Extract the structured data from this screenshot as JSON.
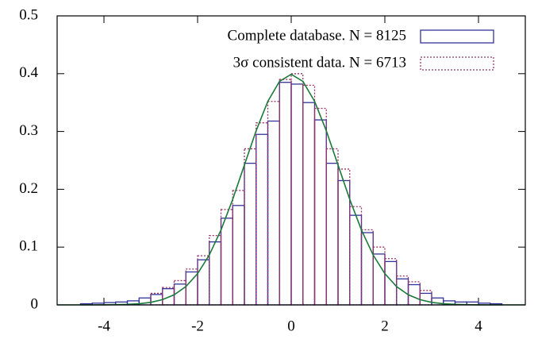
{
  "chart_data": {
    "type": "histogram",
    "bins": [
      -4.5,
      -4.25,
      -4,
      -3.75,
      -3.5,
      -3.25,
      -3,
      -2.75,
      -2.5,
      -2.25,
      -2,
      -1.75,
      -1.5,
      -1.25,
      -1,
      -0.75,
      -0.5,
      -0.25,
      0,
      0.25,
      0.5,
      0.75,
      1,
      1.25,
      1.5,
      1.75,
      2,
      2.25,
      2.5,
      2.75,
      3,
      3.25,
      3.5,
      3.75,
      4,
      4.25,
      4.5
    ],
    "series": [
      {
        "name": "Complete database. N = 8125",
        "color": "#333399",
        "dashed": false,
        "values": [
          0.002,
          0.003,
          0.004,
          0.005,
          0.007,
          0.012,
          0.018,
          0.028,
          0.036,
          0.057,
          0.078,
          0.109,
          0.15,
          0.172,
          0.245,
          0.295,
          0.318,
          0.385,
          0.382,
          0.35,
          0.32,
          0.245,
          0.215,
          0.155,
          0.125,
          0.088,
          0.075,
          0.045,
          0.035,
          0.02,
          0.012,
          0.007,
          0.005,
          0.005,
          0.003,
          0.002
        ]
      },
      {
        "name": "3σ consistent data. N = 6713",
        "color": "#993366",
        "dashed": true,
        "values": [
          0,
          0,
          0,
          0,
          0,
          0,
          0.02,
          0.03,
          0.042,
          0.062,
          0.085,
          0.12,
          0.165,
          0.198,
          0.27,
          0.315,
          0.352,
          0.39,
          0.4,
          0.38,
          0.34,
          0.27,
          0.235,
          0.17,
          0.13,
          0.1,
          0.08,
          0.05,
          0.04,
          0.025,
          0,
          0,
          0,
          0,
          0,
          0
        ]
      }
    ],
    "curve": {
      "color": "#1b7a3a",
      "x": [
        -5,
        -4.75,
        -4.5,
        -4.25,
        -4,
        -3.75,
        -3.5,
        -3.25,
        -3,
        -2.75,
        -2.5,
        -2.25,
        -2,
        -1.75,
        -1.5,
        -1.25,
        -1,
        -0.75,
        -0.5,
        -0.25,
        0,
        0.25,
        0.5,
        0.75,
        1,
        1.25,
        1.5,
        1.75,
        2,
        2.25,
        2.5,
        2.75,
        3,
        3.25,
        3.5,
        3.75,
        4,
        4.25,
        4.5,
        4.75,
        5
      ],
      "values": [
        0,
        0,
        0,
        0,
        0.0001,
        0.0004,
        0.0009,
        0.002,
        0.0044,
        0.0091,
        0.0175,
        0.0317,
        0.054,
        0.0863,
        0.1295,
        0.1826,
        0.242,
        0.3011,
        0.3521,
        0.3867,
        0.3989,
        0.3867,
        0.3521,
        0.3011,
        0.242,
        0.1826,
        0.1295,
        0.0863,
        0.054,
        0.0317,
        0.0175,
        0.0091,
        0.0044,
        0.002,
        0.0009,
        0.0004,
        0.0001,
        0,
        0,
        0,
        0
      ]
    },
    "xlim": [
      -5,
      5
    ],
    "xticks": [
      -4,
      -2,
      0,
      2,
      4
    ],
    "ylim": [
      0,
      0.5
    ],
    "yticks": [
      0,
      0.1,
      0.2,
      0.3,
      0.4,
      0.5
    ],
    "legend": "top-right"
  }
}
